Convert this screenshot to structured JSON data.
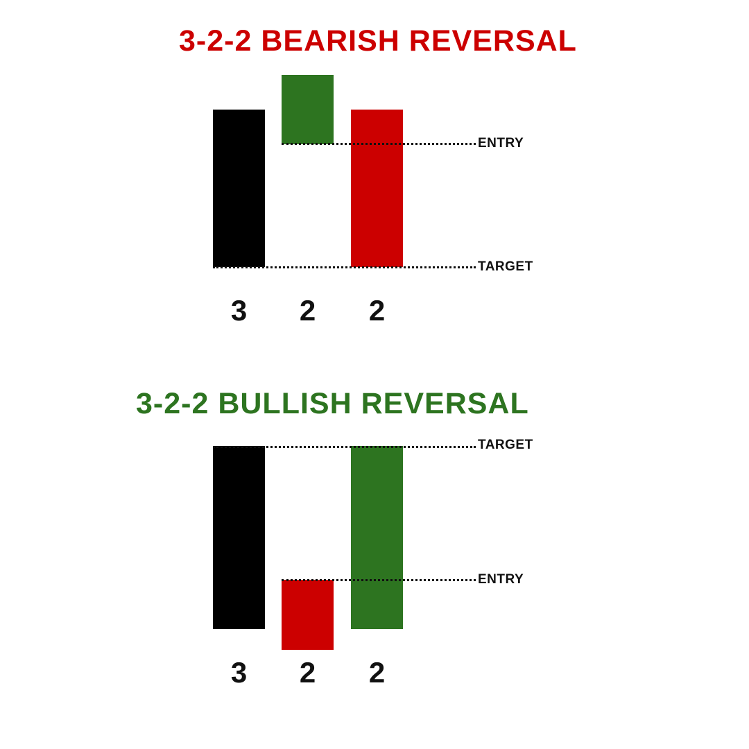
{
  "colors": {
    "bearish_red": "#cc0000",
    "bullish_green": "#2d7420",
    "outside_black": "#000000",
    "text": "#111111"
  },
  "bearish": {
    "title": "3-2-2 BEARISH REVERSAL",
    "entry_label": "ENTRY",
    "target_label": "TARGET",
    "candles": [
      {
        "label": "3",
        "color": "#000000"
      },
      {
        "label": "2",
        "color": "#2d7420"
      },
      {
        "label": "2",
        "color": "#cc0000"
      }
    ]
  },
  "bullish": {
    "title": "3-2-2 BULLISH REVERSAL",
    "entry_label": "ENTRY",
    "target_label": "TARGET",
    "candles": [
      {
        "label": "3",
        "color": "#000000"
      },
      {
        "label": "2",
        "color": "#cc0000"
      },
      {
        "label": "2",
        "color": "#2d7420"
      }
    ]
  }
}
